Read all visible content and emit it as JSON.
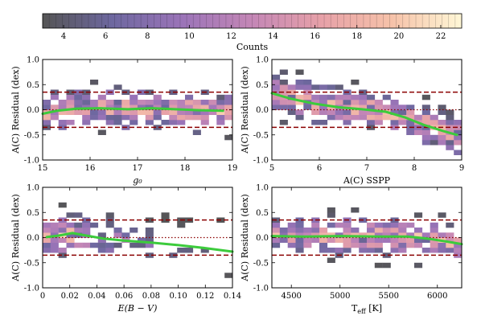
{
  "colorbar": {
    "label": "Counts",
    "min": 3,
    "max": 23,
    "ticks": [
      4,
      6,
      8,
      10,
      12,
      14,
      16,
      18,
      20,
      22
    ],
    "colormap": [
      "#555555",
      "#6e68a0",
      "#9b74b8",
      "#c487b6",
      "#e7a1a8",
      "#f6c2a9",
      "#fff7d6"
    ]
  },
  "chart_data": [
    {
      "type": "heatmap",
      "xlabel": "g₀",
      "ylabel": "A(C) Residual (dex)",
      "xlim": [
        15,
        19
      ],
      "ylim": [
        -1.0,
        1.0
      ],
      "xticks": [
        15,
        16,
        17,
        18,
        19
      ],
      "yticks": [
        -1.0,
        -0.5,
        0.0,
        0.5,
        1.0
      ],
      "reference_lines": {
        "dotted": 0.0,
        "dashed": [
          0.35,
          -0.35
        ]
      },
      "trend_color": "#3ccb3c",
      "trend": [
        [
          15.0,
          -0.08
        ],
        [
          15.3,
          -0.02
        ],
        [
          15.7,
          0.02
        ],
        [
          16.2,
          0.03
        ],
        [
          16.8,
          0.01
        ],
        [
          17.3,
          0.03
        ],
        [
          17.8,
          0.01
        ],
        [
          18.3,
          -0.01
        ],
        [
          18.8,
          -0.02
        ]
      ]
    },
    {
      "type": "heatmap",
      "xlabel": "A(C) SSPP",
      "ylabel": "A(C) Residual (dex)",
      "xlim": [
        5,
        9
      ],
      "ylim": [
        -1.0,
        1.0
      ],
      "xticks": [
        5,
        6,
        7,
        8,
        9
      ],
      "yticks": [
        -1.0,
        -0.5,
        0.0,
        0.5,
        1.0
      ],
      "reference_lines": {
        "dotted": 0.0,
        "dashed": [
          0.35,
          -0.35
        ]
      },
      "trend_color": "#3ccb3c",
      "trend": [
        [
          5.0,
          0.33
        ],
        [
          5.4,
          0.22
        ],
        [
          5.9,
          0.12
        ],
        [
          6.4,
          0.05
        ],
        [
          6.9,
          0.01
        ],
        [
          7.4,
          -0.04
        ],
        [
          7.8,
          -0.15
        ],
        [
          8.2,
          -0.3
        ],
        [
          8.6,
          -0.42
        ],
        [
          8.9,
          -0.5
        ]
      ]
    },
    {
      "type": "heatmap",
      "xlabel": "E(B − V)",
      "ylabel": "A(C) Residual (dex)",
      "xlim": [
        0.0,
        0.14
      ],
      "ylim": [
        -1.0,
        1.0
      ],
      "xticks": [
        0.0,
        0.02,
        0.04,
        0.06,
        0.08,
        0.1,
        0.12,
        0.14
      ],
      "yticks": [
        -1.0,
        -0.5,
        0.0,
        0.5,
        1.0
      ],
      "reference_lines": {
        "dotted": 0.0,
        "dashed": [
          0.35,
          -0.35
        ]
      },
      "trend_color": "#3ccb3c",
      "trend": [
        [
          0.003,
          0.01
        ],
        [
          0.012,
          0.04
        ],
        [
          0.022,
          0.09
        ],
        [
          0.03,
          0.05
        ],
        [
          0.045,
          -0.02
        ],
        [
          0.06,
          -0.06
        ],
        [
          0.08,
          -0.1
        ],
        [
          0.1,
          -0.15
        ],
        [
          0.12,
          -0.21
        ],
        [
          0.14,
          -0.28
        ]
      ]
    },
    {
      "type": "heatmap",
      "xlabel": "T_eff [K]",
      "ylabel": "A(C) Residual (dex)",
      "xlim": [
        4300,
        6250
      ],
      "ylim": [
        -1.0,
        1.0
      ],
      "xticks": [
        4500,
        5000,
        5500,
        6000
      ],
      "yticks": [
        -1.0,
        -0.5,
        0.0,
        0.5,
        1.0
      ],
      "reference_lines": {
        "dotted": 0.0,
        "dashed": [
          0.35,
          -0.35
        ]
      },
      "trend_color": "#3ccb3c",
      "trend": [
        [
          4300,
          0.03
        ],
        [
          4600,
          0.02
        ],
        [
          5000,
          0.03
        ],
        [
          5400,
          0.02
        ],
        [
          5700,
          0.02
        ],
        [
          5900,
          -0.02
        ],
        [
          6100,
          -0.08
        ],
        [
          6250,
          -0.13
        ]
      ]
    }
  ]
}
